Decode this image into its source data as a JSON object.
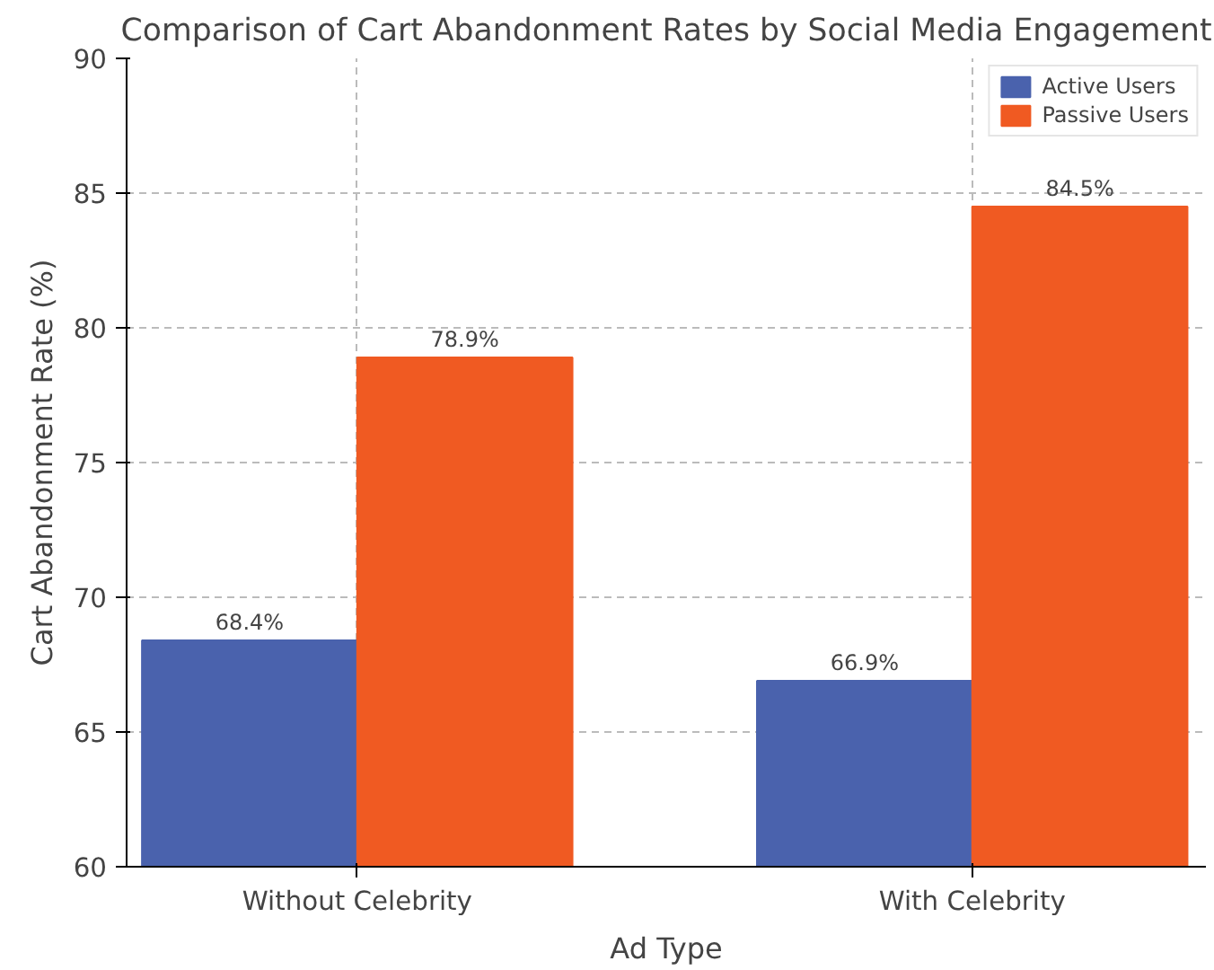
{
  "chart_data": {
    "type": "bar",
    "title": "Comparison of Cart Abandonment Rates by Social Media Engagement",
    "xlabel": "Ad Type",
    "ylabel": "Cart Abandonment Rate (%)",
    "categories": [
      "Without Celebrity",
      "With Celebrity"
    ],
    "series": [
      {
        "name": "Active Users",
        "color": "#4a62ad",
        "values": [
          68.4,
          66.9
        ],
        "value_labels": [
          "68.4%",
          "66.9%"
        ]
      },
      {
        "name": "Passive Users",
        "color": "#f05a22",
        "values": [
          78.9,
          84.5
        ],
        "value_labels": [
          "78.9%",
          "84.5%"
        ]
      }
    ],
    "ylim": [
      60,
      90
    ],
    "yticks": [
      60,
      65,
      70,
      75,
      80,
      85,
      90
    ],
    "grid": true,
    "legend": "top right"
  }
}
